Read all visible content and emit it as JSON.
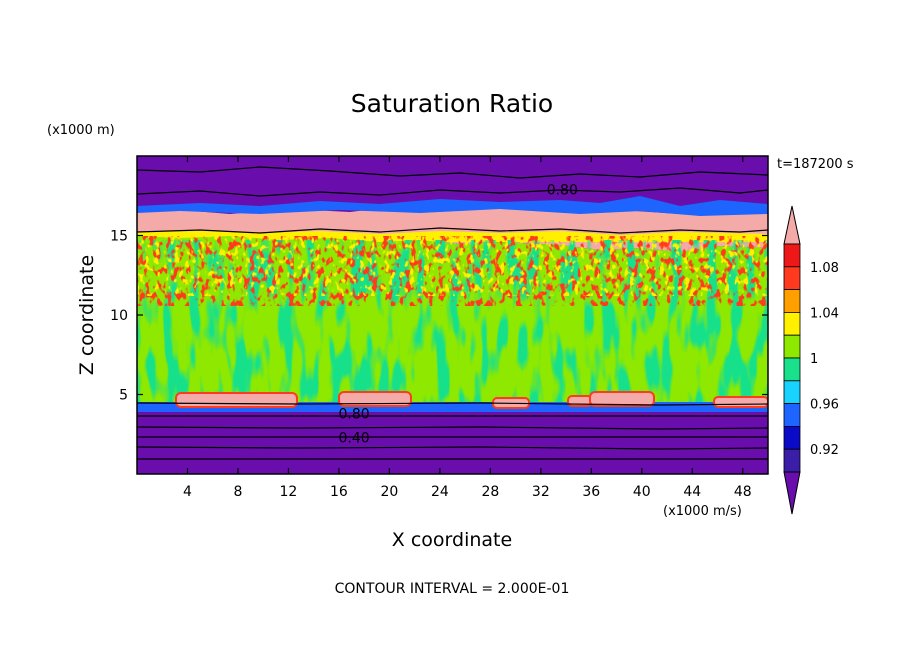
{
  "chart_data": {
    "type": "heatmap",
    "title": "Saturation Ratio",
    "xlabel": "X coordinate",
    "ylabel": "Z coordinate",
    "x_unit": "(x1000 m/s)",
    "y_unit": "(x1000 m)",
    "time_label": "t=187200 s",
    "footer": "CONTOUR INTERVAL = 2.000E-01",
    "xlim": [
      0,
      50
    ],
    "ylim": [
      0,
      20
    ],
    "x_ticks": [
      "4",
      "8",
      "12",
      "16",
      "20",
      "24",
      "28",
      "32",
      "36",
      "40",
      "44",
      "48"
    ],
    "y_ticks": [
      "5",
      "10",
      "15"
    ],
    "contour_labels": [
      {
        "text": "0.80",
        "x": 33.7,
        "z": 17.9
      },
      {
        "text": "0.80",
        "x": 17.2,
        "z": 3.8
      },
      {
        "text": "0.40",
        "x": 17.2,
        "z": 2.3
      }
    ],
    "colorbar": {
      "levels": [
        0.9,
        0.92,
        0.94,
        0.96,
        0.98,
        1.0,
        1.02,
        1.04,
        1.06,
        1.08,
        1.1
      ],
      "colors": [
        "#6a0dad",
        "#3a1ea8",
        "#0a0ac8",
        "#1e64ff",
        "#18d2ff",
        "#19e08a",
        "#8ee800",
        "#fff000",
        "#ff9f00",
        "#ff3a1e",
        "#ee1818",
        "#f5aaaa"
      ],
      "labels": [
        "0.92",
        "0.96",
        "1",
        "1.04",
        "1.08"
      ]
    },
    "layers": [
      {
        "z_bottom": 0,
        "z_top": 4.2,
        "value": "below 0.90"
      },
      {
        "z_bottom": 4.2,
        "z_top": 14.5,
        "value": "about 0.98-1.02"
      },
      {
        "z_bottom": 14.5,
        "z_top": 16.5,
        "value": "above 1.10"
      },
      {
        "z_bottom": 16.5,
        "z_top": 20,
        "value": "below 0.90"
      }
    ]
  }
}
